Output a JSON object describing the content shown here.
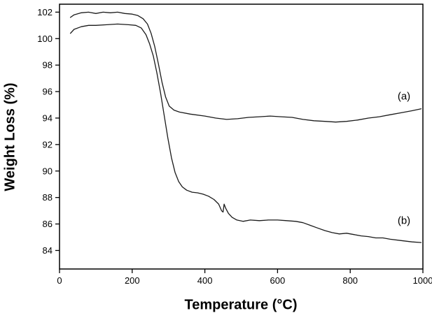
{
  "chart_data": {
    "type": "line",
    "title": "",
    "xlabel": "Temperature (°C)",
    "ylabel": "Weight Loss (%)",
    "xlim": [
      0,
      1000
    ],
    "ylim": [
      82.6,
      102.6
    ],
    "x_ticks": [
      0,
      200,
      400,
      600,
      800,
      1000
    ],
    "y_ticks": [
      84,
      86,
      88,
      90,
      92,
      94,
      96,
      98,
      100,
      102
    ],
    "grid": false,
    "legend_position": "none",
    "line_color": "#1a1a1a",
    "background_color": "#ffffff",
    "series": [
      {
        "name": "a",
        "label": "(a)",
        "x": [
          30,
          40,
          60,
          80,
          100,
          120,
          140,
          160,
          180,
          200,
          215,
          230,
          242,
          252,
          262,
          272,
          282,
          292,
          302,
          315,
          330,
          360,
          400,
          430,
          460,
          490,
          520,
          550,
          580,
          610,
          640,
          670,
          700,
          730,
          760,
          790,
          820,
          850,
          880,
          910,
          940,
          970,
          995
        ],
        "y": [
          101.6,
          101.8,
          101.95,
          102.0,
          101.9,
          102.0,
          101.95,
          102.0,
          101.9,
          101.85,
          101.75,
          101.5,
          101.1,
          100.4,
          99.4,
          98.1,
          96.7,
          95.6,
          94.9,
          94.6,
          94.45,
          94.3,
          94.15,
          94.0,
          93.9,
          93.95,
          94.05,
          94.1,
          94.15,
          94.1,
          94.05,
          93.9,
          93.8,
          93.75,
          93.7,
          93.75,
          93.85,
          94.0,
          94.1,
          94.25,
          94.4,
          94.55,
          94.7
        ]
      },
      {
        "name": "b",
        "label": "(b)",
        "x": [
          30,
          40,
          60,
          80,
          100,
          130,
          160,
          190,
          210,
          225,
          238,
          248,
          258,
          268,
          278,
          288,
          298,
          308,
          318,
          328,
          338,
          350,
          365,
          380,
          395,
          410,
          425,
          438,
          446,
          450,
          453,
          457,
          465,
          475,
          488,
          505,
          525,
          550,
          575,
          600,
          625,
          650,
          670,
          690,
          710,
          730,
          750,
          770,
          790,
          810,
          830,
          850,
          870,
          890,
          910,
          940,
          970,
          995
        ],
        "y": [
          100.4,
          100.7,
          100.9,
          101.0,
          101.0,
          101.05,
          101.1,
          101.05,
          101.0,
          100.8,
          100.3,
          99.6,
          98.7,
          97.4,
          95.9,
          94.2,
          92.5,
          91.0,
          89.9,
          89.2,
          88.8,
          88.55,
          88.4,
          88.35,
          88.25,
          88.1,
          87.85,
          87.5,
          87.0,
          86.9,
          87.5,
          87.2,
          86.8,
          86.5,
          86.3,
          86.2,
          86.3,
          86.25,
          86.3,
          86.3,
          86.25,
          86.2,
          86.1,
          85.9,
          85.7,
          85.5,
          85.35,
          85.25,
          85.3,
          85.2,
          85.1,
          85.05,
          84.95,
          84.95,
          84.85,
          84.75,
          84.65,
          84.6
        ]
      }
    ],
    "annotations": [
      {
        "text": "(a)",
        "x": 948,
        "y": 95.4
      },
      {
        "text": "(b)",
        "x": 948,
        "y": 86.0
      }
    ]
  }
}
